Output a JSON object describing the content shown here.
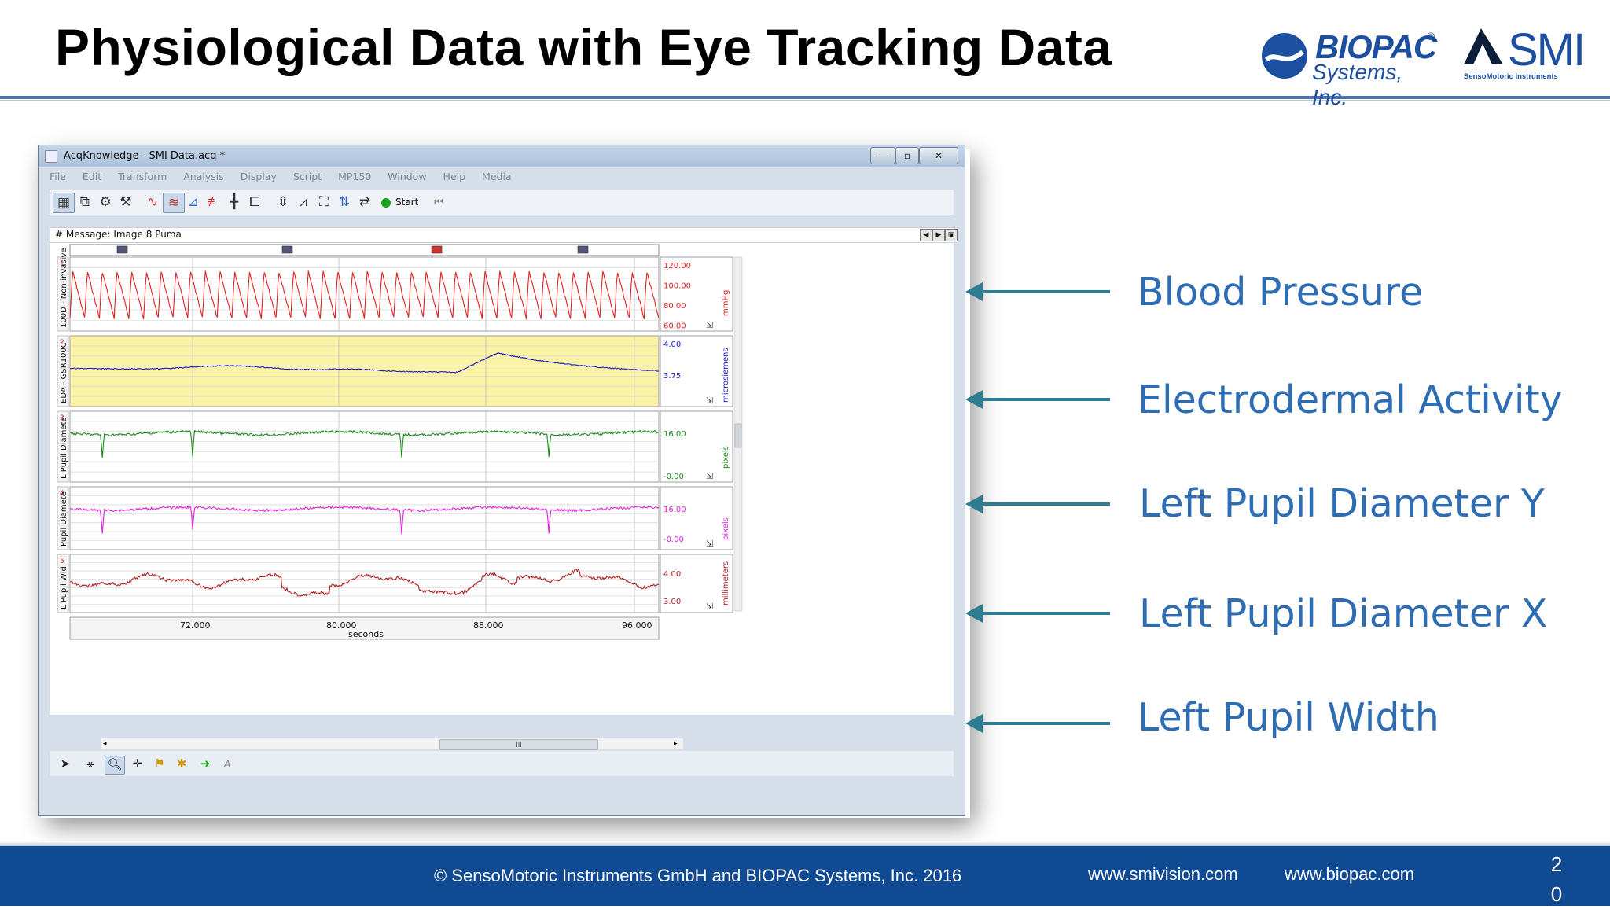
{
  "slide": {
    "title": "Physiological Data with Eye Tracking Data",
    "page_number": "2\n0",
    "footer_copyright": "© SensoMotoric Instruments GmbH and BIOPAC Systems, Inc. 2016",
    "footer_url_1": "www.smivision.com",
    "footer_url_2": "www.biopac.com"
  },
  "logos": {
    "biopac_name": "BIOPAC",
    "biopac_reg": "®",
    "biopac_sub": "Systems, Inc.",
    "smi_word": "SMI",
    "smi_sub": "SensoMotoric Instruments"
  },
  "window": {
    "title": "AcqKnowledge - SMI Data.acq *",
    "controls": [
      "—",
      "▫",
      "✕"
    ],
    "menu": [
      "File",
      "Edit",
      "Transform",
      "Analysis",
      "Display",
      "Script",
      "MP150",
      "Window",
      "Help",
      "Media"
    ],
    "start_label": "Start",
    "message": "# Message: Image 8 Puma",
    "x_axis_unit": "seconds",
    "x_ticks": [
      "72.000",
      "80.000",
      "88.000",
      "96.000"
    ],
    "scroll_thumb": "III"
  },
  "channels": [
    {
      "num": "1",
      "name": "100D - Non-invasive",
      "unit": "mmHg",
      "ticks": [
        "120.00",
        "100.00",
        "80.00",
        "60.00"
      ],
      "color": "#e02020",
      "bg": "#ffffff"
    },
    {
      "num": "2",
      "name": "EDA - GSR100C",
      "unit": "microsiemens",
      "ticks": [
        "4.00",
        "3.75"
      ],
      "color": "#1a1acc",
      "bg": "#faf3a6"
    },
    {
      "num": "3",
      "name": "L Pupil Diamete",
      "unit": "pixels",
      "ticks": [
        "16.00",
        "-0.00"
      ],
      "color": "#1a8a1a",
      "bg": "#ffffff"
    },
    {
      "num": "4",
      "name": "Pupil Diamete",
      "unit": "pixels",
      "ticks": [
        "16.00",
        "-0.00"
      ],
      "color": "#e020e0",
      "bg": "#ffffff"
    },
    {
      "num": "5",
      "name": "L Pupil Wid",
      "unit": "millimeters",
      "ticks": [
        "4.00",
        "3.00"
      ],
      "color": "#b02020",
      "bg": "#ffffff"
    }
  ],
  "annotations": [
    "Blood Pressure",
    "Electrodermal Activity",
    "Left Pupil Diameter Y",
    "Left Pupil Diameter X",
    "Left Pupil Width"
  ],
  "colors": {
    "title_rule": "#4f73a4",
    "footer_bg": "#0f4a93",
    "arrow": "#2e7c92",
    "label_text": "#2e6db3"
  }
}
